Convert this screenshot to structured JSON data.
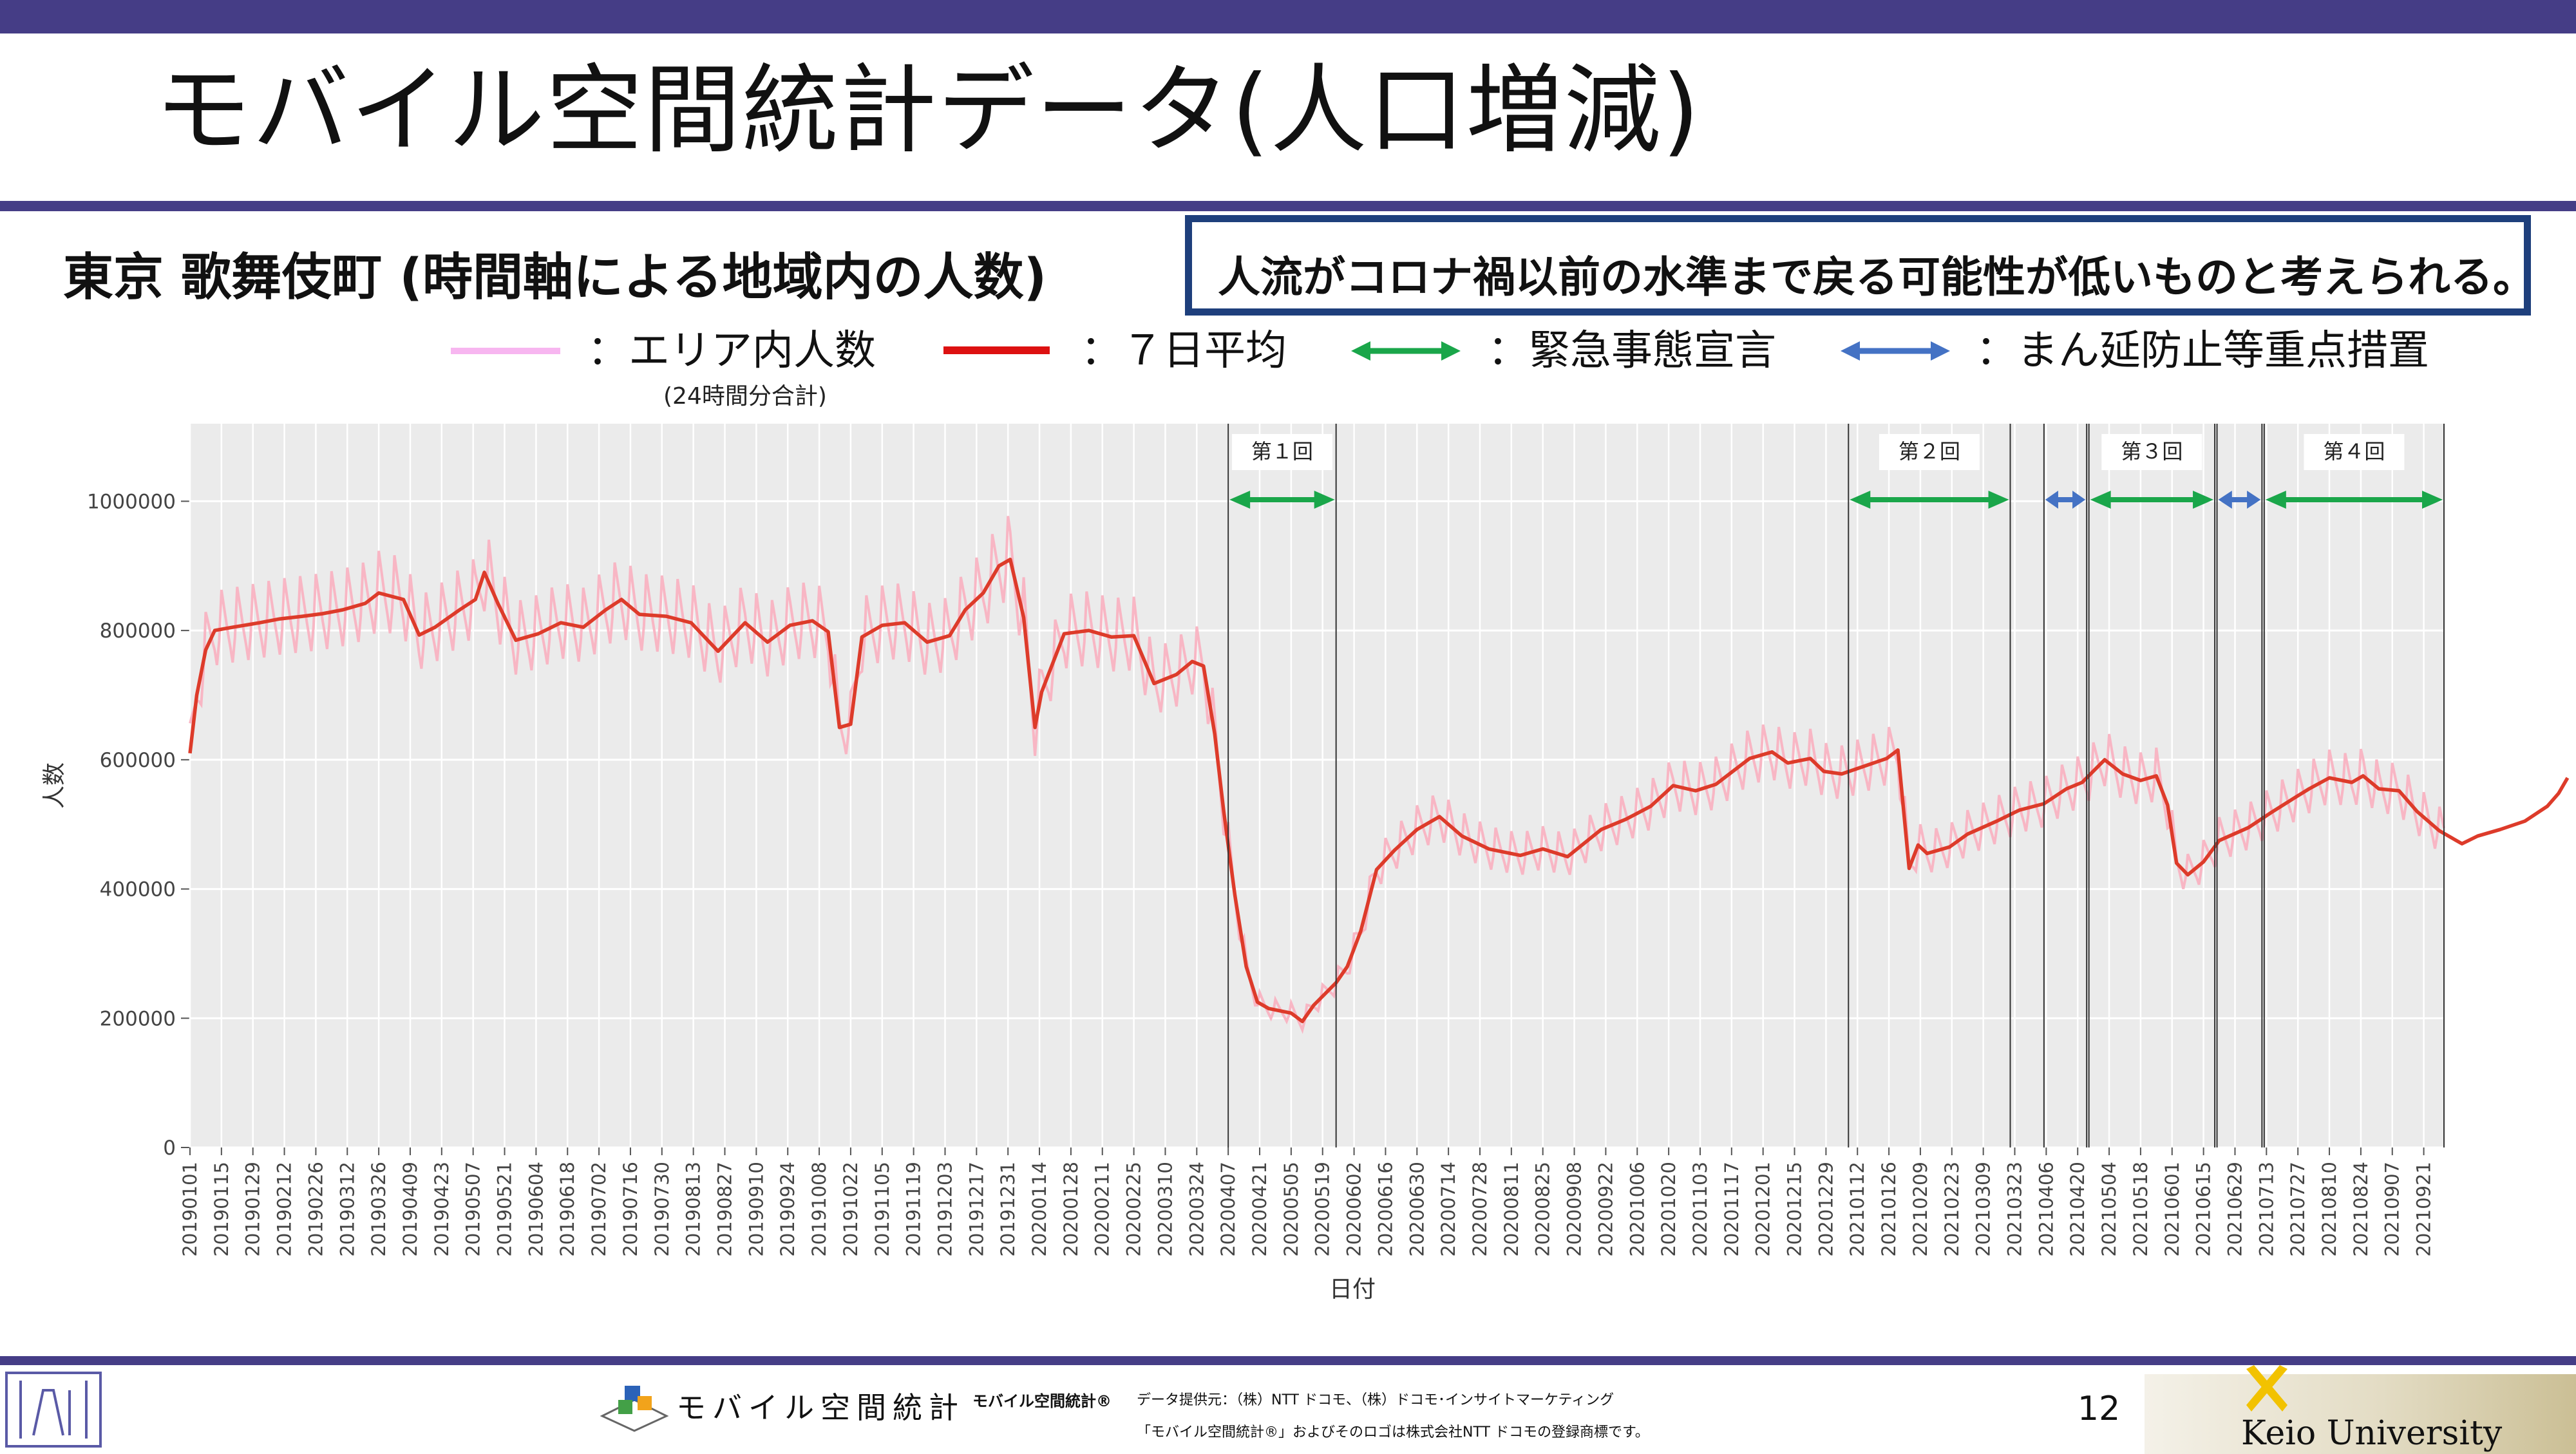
{
  "slide": {
    "title": "モバイル空間統計データ(人口増減)",
    "subtitle": "東京 歌舞伎町 (時間軸による地域内の人数)",
    "callout": "人流がコロナ禍以前の水準まで戻る可能性が低いものと考えられる。",
    "page_number": "12"
  },
  "legend": {
    "items": [
      {
        "label": "：エリア内人数",
        "note": "(24時間分合計)",
        "color": "#f7b6f0"
      },
      {
        "label": "：７日平均",
        "color": "#dd1111"
      },
      {
        "label": "：緊急事態宣言",
        "color": "#1aa64a"
      },
      {
        "label": "：まん延防止等重点措置",
        "color": "#4472c4"
      }
    ]
  },
  "footer": {
    "mobile_logo": "モバイル空間統計",
    "mobile_small": "モバイル空間統計®",
    "credit_line1": "データ提供元：（株）NTT ドコモ、（株）ドコモ･インサイトマーケティング",
    "credit_line2": "「モバイル空間統計®」およびそのロゴは株式会社NTT ドコモの登録商標です。",
    "university": "Keio University"
  },
  "chart_data": {
    "type": "line",
    "xlabel": "日付",
    "ylabel": "人数",
    "ylim": [
      0,
      1120000
    ],
    "yticks": [
      0,
      200000,
      400000,
      600000,
      800000,
      1000000
    ],
    "x_start": "20190101",
    "x_end": "20210930",
    "x_tick_labels": [
      "20190101",
      "20190115",
      "20190129",
      "20190212",
      "20190226",
      "20190312",
      "20190326",
      "20190409",
      "20190423",
      "20190507",
      "20190521",
      "20190604",
      "20190618",
      "20190702",
      "20190716",
      "20190730",
      "20190813",
      "20190827",
      "20190910",
      "20190924",
      "20191008",
      "20191022",
      "20191105",
      "20191119",
      "20191203",
      "20191217",
      "20191231",
      "20200114",
      "20200128",
      "20200211",
      "20200225",
      "20200310",
      "20200324",
      "20200407",
      "20200421",
      "20200505",
      "20200519",
      "20200602",
      "20200616",
      "20200630",
      "20200714",
      "20200728",
      "20200811",
      "20200825",
      "20200908",
      "20200922",
      "20201006",
      "20201020",
      "20201103",
      "20201117",
      "20201201",
      "20201215",
      "20201229",
      "20210112",
      "20210126",
      "20210209",
      "20210223",
      "20210309",
      "20210323",
      "20210406",
      "20210420",
      "20210504",
      "20210518",
      "20210601",
      "20210615",
      "20210629",
      "20210713",
      "20210727",
      "20210810",
      "20210824",
      "20210907",
      "20210921"
    ],
    "series": [
      {
        "name": "７日平均",
        "color": "#dd3b2a",
        "points": [
          [
            "20190101",
            610000
          ],
          [
            "20190104",
            700000
          ],
          [
            "20190108",
            770000
          ],
          [
            "20190112",
            800000
          ],
          [
            "20190120",
            805000
          ],
          [
            "20190201",
            812000
          ],
          [
            "20190210",
            818000
          ],
          [
            "20190220",
            822000
          ],
          [
            "20190301",
            826000
          ],
          [
            "20190310",
            832000
          ],
          [
            "20190320",
            842000
          ],
          [
            "20190326",
            858000
          ],
          [
            "20190406",
            848000
          ],
          [
            "20190413",
            793000
          ],
          [
            "20190420",
            805000
          ],
          [
            "20190501",
            832000
          ],
          [
            "20190508",
            848000
          ],
          [
            "20190512",
            890000
          ],
          [
            "20190518",
            842000
          ],
          [
            "20190526",
            785000
          ],
          [
            "20190605",
            795000
          ],
          [
            "20190615",
            812000
          ],
          [
            "20190625",
            805000
          ],
          [
            "20190705",
            832000
          ],
          [
            "20190712",
            848000
          ],
          [
            "20190720",
            825000
          ],
          [
            "20190801",
            822000
          ],
          [
            "20190812",
            812000
          ],
          [
            "20190824",
            768000
          ],
          [
            "20190905",
            812000
          ],
          [
            "20190915",
            782000
          ],
          [
            "20190925",
            808000
          ],
          [
            "20191005",
            815000
          ],
          [
            "20191012",
            798000
          ],
          [
            "20191017",
            650000
          ],
          [
            "20191022",
            655000
          ],
          [
            "20191027",
            790000
          ],
          [
            "20191105",
            808000
          ],
          [
            "20191115",
            812000
          ],
          [
            "20191125",
            782000
          ],
          [
            "20191205",
            792000
          ],
          [
            "20191212",
            832000
          ],
          [
            "20191220",
            858000
          ],
          [
            "20191227",
            900000
          ],
          [
            "20200101",
            910000
          ],
          [
            "20200107",
            820000
          ],
          [
            "20200112",
            650000
          ],
          [
            "20200115",
            705000
          ],
          [
            "20200125",
            795000
          ],
          [
            "20200205",
            800000
          ],
          [
            "20200215",
            790000
          ],
          [
            "20200225",
            792000
          ],
          [
            "20200305",
            718000
          ],
          [
            "20200315",
            732000
          ],
          [
            "20200322",
            752000
          ],
          [
            "20200327",
            745000
          ],
          [
            "20200401",
            640000
          ],
          [
            "20200405",
            520000
          ],
          [
            "20200410",
            390000
          ],
          [
            "20200415",
            280000
          ],
          [
            "20200420",
            225000
          ],
          [
            "20200425",
            215000
          ],
          [
            "20200505",
            208000
          ],
          [
            "20200510",
            195000
          ],
          [
            "20200515",
            220000
          ],
          [
            "20200525",
            255000
          ],
          [
            "20200530",
            280000
          ],
          [
            "20200605",
            335000
          ],
          [
            "20200612",
            430000
          ],
          [
            "20200620",
            460000
          ],
          [
            "20200630",
            492000
          ],
          [
            "20200710",
            512000
          ],
          [
            "20200720",
            482000
          ],
          [
            "20200801",
            462000
          ],
          [
            "20200815",
            452000
          ],
          [
            "20200825",
            462000
          ],
          [
            "20200905",
            450000
          ],
          [
            "20200920",
            492000
          ],
          [
            "20201001",
            508000
          ],
          [
            "20201012",
            528000
          ],
          [
            "20201022",
            560000
          ],
          [
            "20201101",
            552000
          ],
          [
            "20201110",
            562000
          ],
          [
            "20201125",
            602000
          ],
          [
            "20201205",
            612000
          ],
          [
            "20201212",
            595000
          ],
          [
            "20201222",
            602000
          ],
          [
            "20201228",
            582000
          ],
          [
            "20210105",
            578000
          ],
          [
            "20210115",
            590000
          ],
          [
            "20210125",
            602000
          ],
          [
            "20210130",
            615000
          ],
          [
            "20210204",
            432000
          ],
          [
            "20210208",
            468000
          ],
          [
            "20210212",
            455000
          ],
          [
            "20210222",
            465000
          ],
          [
            "20210302",
            485000
          ],
          [
            "20210315",
            505000
          ],
          [
            "20210325",
            522000
          ],
          [
            "20210405",
            532000
          ],
          [
            "20210415",
            555000
          ],
          [
            "20210422",
            565000
          ],
          [
            "20210502",
            600000
          ],
          [
            "20210510",
            578000
          ],
          [
            "20210518",
            568000
          ],
          [
            "20210525",
            575000
          ],
          [
            "20210530",
            530000
          ],
          [
            "20210603",
            440000
          ],
          [
            "20210608",
            422000
          ],
          [
            "20210615",
            442000
          ],
          [
            "20210622",
            475000
          ],
          [
            "20210705",
            495000
          ],
          [
            "20210715",
            518000
          ],
          [
            "20210725",
            540000
          ],
          [
            "20210801",
            555000
          ],
          [
            "20210810",
            572000
          ],
          [
            "20210820",
            565000
          ],
          [
            "20210825",
            575000
          ],
          [
            "20210901",
            555000
          ],
          [
            "20210910",
            552000
          ],
          [
            "20210918",
            520000
          ],
          [
            "20210928",
            490000
          ],
          [
            "20211008",
            470000
          ],
          [
            "20211015",
            482000
          ],
          [
            "20211025",
            492000
          ],
          [
            "20211105",
            505000
          ],
          [
            "20211115",
            528000
          ],
          [
            "20211120",
            548000
          ],
          [
            "20211124",
            572000
          ]
        ]
      }
    ],
    "periods": [
      {
        "label": "第１回",
        "type": "緊急事態宣言",
        "start": "20200407",
        "end": "20200525"
      },
      {
        "label": "第２回",
        "type": "緊急事態宣言",
        "start": "20210108",
        "end": "20210321"
      },
      {
        "label": "",
        "type": "まん延防止等重点措置",
        "start": "20210405",
        "end": "20210424"
      },
      {
        "label": "第３回",
        "type": "緊急事態宣言",
        "start": "20210425",
        "end": "20210620"
      },
      {
        "label": "",
        "type": "まん延防止等重点措置",
        "start": "20210621",
        "end": "20210711"
      },
      {
        "label": "第４回",
        "type": "緊急事態宣言",
        "start": "20210712",
        "end": "20210930"
      }
    ]
  }
}
